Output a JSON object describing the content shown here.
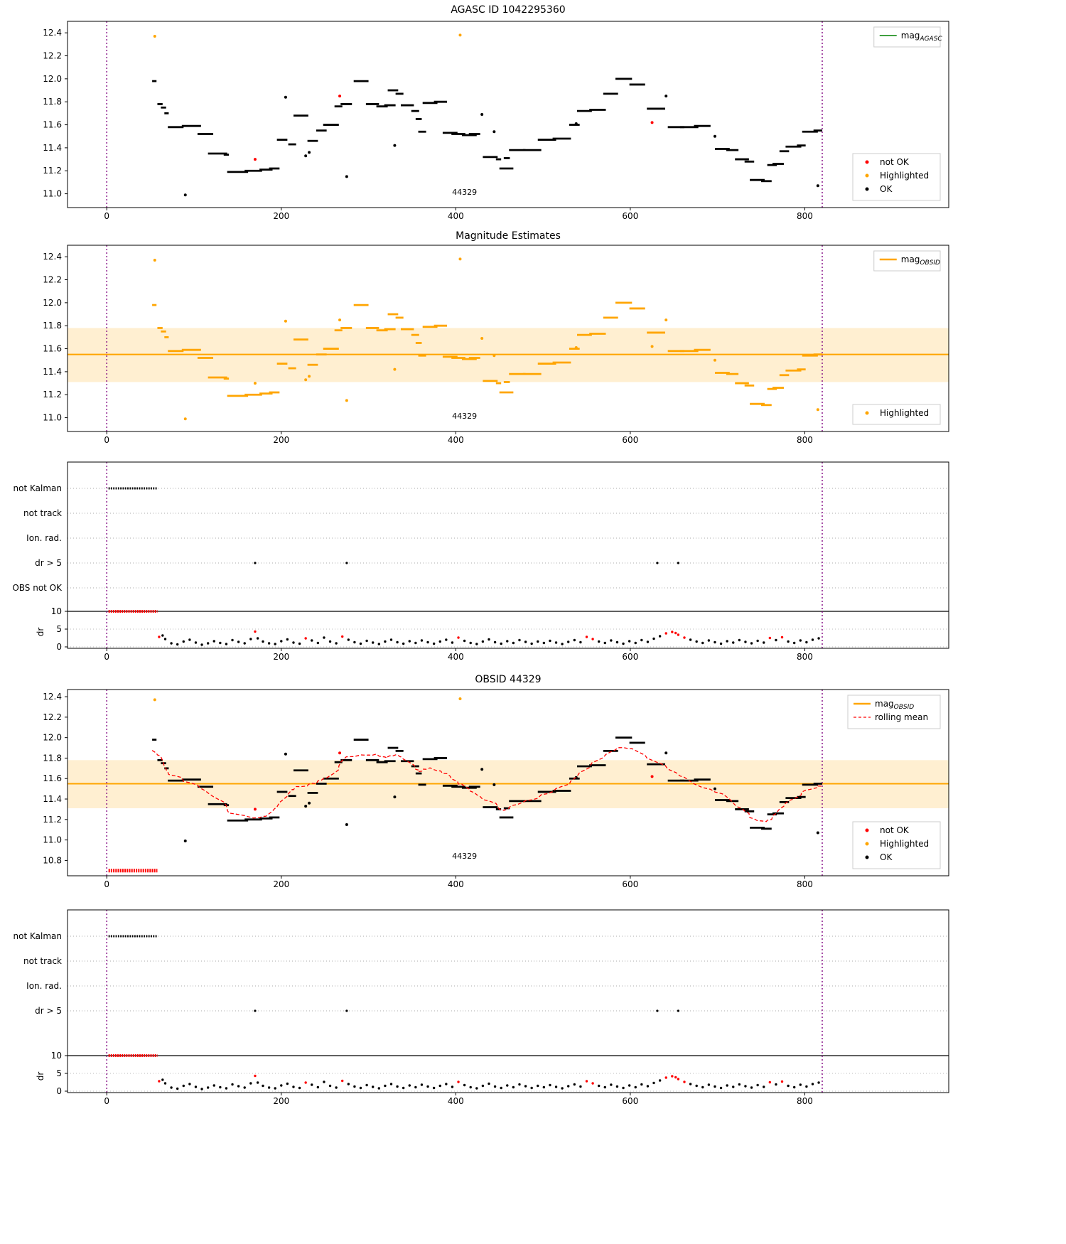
{
  "chart_data": {
    "shared": {
      "xlim": [
        -45,
        965
      ],
      "xticks": [
        0,
        200,
        400,
        600,
        800
      ],
      "vlines": [
        0,
        820
      ],
      "vline_color": "#800080",
      "mag_mean": 11.55,
      "mag_band": [
        11.31,
        11.78
      ],
      "red_cluster": {
        "x0": 2,
        "x1": 58,
        "mag": 10.7
      },
      "mag_segments": [
        [
          52,
          57,
          11.98
        ],
        [
          58,
          64,
          11.78
        ],
        [
          62,
          68,
          11.75
        ],
        [
          66,
          71,
          11.7
        ],
        [
          70,
          88,
          11.58
        ],
        [
          86,
          108,
          11.59
        ],
        [
          104,
          122,
          11.52
        ],
        [
          116,
          138,
          11.35
        ],
        [
          134,
          140,
          11.34
        ],
        [
          138,
          162,
          11.19
        ],
        [
          158,
          178,
          11.2
        ],
        [
          175,
          190,
          11.21
        ],
        [
          186,
          198,
          11.22
        ],
        [
          195,
          207,
          11.47
        ],
        [
          208,
          217,
          11.43
        ],
        [
          214,
          231,
          11.68
        ],
        [
          230,
          242,
          11.46
        ],
        [
          240,
          252,
          11.55
        ],
        [
          248,
          266,
          11.6
        ],
        [
          261,
          270,
          11.76
        ],
        [
          268,
          281,
          11.78
        ],
        [
          283,
          300,
          11.98
        ],
        [
          297,
          312,
          11.78
        ],
        [
          309,
          322,
          11.76
        ],
        [
          318,
          331,
          11.77
        ],
        [
          322,
          334,
          11.9
        ],
        [
          331,
          340,
          11.87
        ],
        [
          337,
          352,
          11.77
        ],
        [
          349,
          358,
          11.72
        ],
        [
          354,
          361,
          11.65
        ],
        [
          357,
          366,
          11.54
        ],
        [
          362,
          379,
          11.79
        ],
        [
          375,
          390,
          11.8
        ],
        [
          385,
          402,
          11.53
        ],
        [
          395,
          411,
          11.52
        ],
        [
          407,
          424,
          11.51
        ],
        [
          415,
          428,
          11.52
        ],
        [
          431,
          448,
          11.32
        ],
        [
          446,
          452,
          11.3
        ],
        [
          450,
          466,
          11.22
        ],
        [
          455,
          462,
          11.31
        ],
        [
          461,
          480,
          11.38
        ],
        [
          477,
          498,
          11.38
        ],
        [
          494,
          515,
          11.47
        ],
        [
          511,
          532,
          11.48
        ],
        [
          530,
          542,
          11.6
        ],
        [
          539,
          556,
          11.72
        ],
        [
          553,
          572,
          11.73
        ],
        [
          569,
          586,
          11.87
        ],
        [
          583,
          602,
          12.0
        ],
        [
          599,
          617,
          11.95
        ],
        [
          619,
          640,
          11.74
        ],
        [
          643,
          662,
          11.58
        ],
        [
          657,
          678,
          11.58
        ],
        [
          673,
          692,
          11.59
        ],
        [
          697,
          714,
          11.39
        ],
        [
          710,
          724,
          11.38
        ],
        [
          720,
          736,
          11.3
        ],
        [
          731,
          742,
          11.28
        ],
        [
          737,
          754,
          11.12
        ],
        [
          750,
          762,
          11.11
        ],
        [
          757,
          768,
          11.25
        ],
        [
          763,
          776,
          11.26
        ],
        [
          771,
          782,
          11.37
        ],
        [
          778,
          796,
          11.41
        ],
        [
          791,
          801,
          11.42
        ],
        [
          797,
          815,
          11.54
        ],
        [
          810,
          820,
          11.55
        ]
      ],
      "single_points": [
        [
          90,
          10.99
        ],
        [
          205,
          11.84
        ],
        [
          228,
          11.33
        ],
        [
          232,
          11.36
        ],
        [
          275,
          11.15
        ],
        [
          330,
          11.42
        ],
        [
          430,
          11.69
        ],
        [
          444,
          11.54
        ],
        [
          538,
          11.61
        ],
        [
          641,
          11.85
        ],
        [
          697,
          11.5
        ],
        [
          815,
          11.07
        ]
      ],
      "red_points": [
        [
          170,
          11.3
        ],
        [
          267,
          11.85
        ],
        [
          625,
          11.62
        ]
      ],
      "orange_points": [
        [
          55,
          12.37
        ],
        [
          405,
          12.38
        ]
      ],
      "flags": {
        "not_kalman": {
          "x0": 2,
          "x1": 58
        },
        "dr10": {
          "x0": 2,
          "x1": 58
        },
        "dr_gt5_points": [
          170,
          275,
          631,
          655
        ],
        "dr_points": [
          [
            60,
            2.8,
            1
          ],
          [
            64,
            3.2,
            0
          ],
          [
            67,
            2.2,
            0
          ],
          [
            74,
            1.0,
            0
          ],
          [
            81,
            0.7,
            0
          ],
          [
            88,
            1.5,
            0
          ],
          [
            95,
            2.0,
            0
          ],
          [
            102,
            1.2,
            0
          ],
          [
            109,
            0.6,
            0
          ],
          [
            116,
            1.0,
            0
          ],
          [
            123,
            1.6,
            0
          ],
          [
            130,
            1.1,
            0
          ],
          [
            137,
            0.8,
            0
          ],
          [
            144,
            1.9,
            0
          ],
          [
            151,
            1.4,
            0
          ],
          [
            158,
            1.0,
            0
          ],
          [
            165,
            2.2,
            0
          ],
          [
            170,
            4.3,
            1
          ],
          [
            173,
            2.4,
            0
          ],
          [
            179,
            1.5,
            0
          ],
          [
            186,
            1.0,
            0
          ],
          [
            193,
            0.8,
            0
          ],
          [
            200,
            1.6,
            0
          ],
          [
            207,
            2.1,
            0
          ],
          [
            214,
            1.2,
            0
          ],
          [
            221,
            0.9,
            0
          ],
          [
            228,
            2.4,
            1
          ],
          [
            235,
            1.8,
            0
          ],
          [
            242,
            1.1,
            0
          ],
          [
            249,
            2.6,
            0
          ],
          [
            256,
            1.5,
            0
          ],
          [
            263,
            1.0,
            0
          ],
          [
            270,
            2.9,
            1
          ],
          [
            277,
            2.0,
            0
          ],
          [
            284,
            1.3,
            0
          ],
          [
            291,
            0.9,
            0
          ],
          [
            298,
            1.7,
            0
          ],
          [
            305,
            1.2,
            0
          ],
          [
            312,
            0.8,
            0
          ],
          [
            319,
            1.5,
            0
          ],
          [
            326,
            2.0,
            0
          ],
          [
            333,
            1.3,
            0
          ],
          [
            340,
            0.9,
            0
          ],
          [
            347,
            1.6,
            0
          ],
          [
            354,
            1.1,
            0
          ],
          [
            361,
            1.8,
            0
          ],
          [
            368,
            1.3,
            0
          ],
          [
            375,
            0.9,
            0
          ],
          [
            382,
            1.5,
            0
          ],
          [
            389,
            2.0,
            0
          ],
          [
            396,
            1.2,
            0
          ],
          [
            403,
            2.6,
            1
          ],
          [
            410,
            1.7,
            0
          ],
          [
            417,
            1.1,
            0
          ],
          [
            424,
            0.8,
            0
          ],
          [
            431,
            1.5,
            0
          ],
          [
            438,
            2.1,
            0
          ],
          [
            445,
            1.3,
            0
          ],
          [
            452,
            0.9,
            0
          ],
          [
            459,
            1.6,
            0
          ],
          [
            466,
            1.1,
            0
          ],
          [
            473,
            1.9,
            0
          ],
          [
            480,
            1.4,
            0
          ],
          [
            487,
            0.9,
            0
          ],
          [
            494,
            1.5,
            0
          ],
          [
            501,
            1.1,
            0
          ],
          [
            508,
            1.7,
            0
          ],
          [
            515,
            1.2,
            0
          ],
          [
            522,
            0.8,
            0
          ],
          [
            529,
            1.4,
            0
          ],
          [
            536,
            1.9,
            0
          ],
          [
            543,
            1.3,
            0
          ],
          [
            550,
            2.8,
            1
          ],
          [
            557,
            2.2,
            1
          ],
          [
            564,
            1.5,
            0
          ],
          [
            571,
            1.1,
            0
          ],
          [
            578,
            1.8,
            0
          ],
          [
            585,
            1.3,
            0
          ],
          [
            592,
            0.9,
            0
          ],
          [
            599,
            1.6,
            0
          ],
          [
            606,
            1.1,
            0
          ],
          [
            613,
            1.9,
            0
          ],
          [
            620,
            1.4,
            0
          ],
          [
            627,
            2.3,
            0
          ],
          [
            634,
            3.0,
            0
          ],
          [
            641,
            3.8,
            1
          ],
          [
            648,
            4.2,
            1
          ],
          [
            652,
            3.9,
            1
          ],
          [
            655,
            3.4,
            1
          ],
          [
            662,
            2.6,
            1
          ],
          [
            669,
            2.0,
            0
          ],
          [
            676,
            1.5,
            0
          ],
          [
            683,
            1.1,
            0
          ],
          [
            690,
            1.8,
            0
          ],
          [
            697,
            1.3,
            0
          ],
          [
            704,
            0.9,
            0
          ],
          [
            711,
            1.6,
            0
          ],
          [
            718,
            1.2,
            0
          ],
          [
            725,
            1.9,
            0
          ],
          [
            732,
            1.4,
            0
          ],
          [
            739,
            1.0,
            0
          ],
          [
            746,
            1.7,
            0
          ],
          [
            753,
            1.2,
            0
          ],
          [
            760,
            2.5,
            1
          ],
          [
            767,
            1.9,
            0
          ],
          [
            774,
            2.7,
            1
          ],
          [
            781,
            1.5,
            0
          ],
          [
            788,
            1.1,
            0
          ],
          [
            795,
            1.8,
            0
          ],
          [
            802,
            1.3,
            0
          ],
          [
            809,
            2.0,
            0
          ],
          [
            816,
            2.4,
            0
          ]
        ]
      }
    },
    "charts": [
      {
        "id": "agasc",
        "type": "mag",
        "title": "AGASC ID 1042295360",
        "ylim": [
          10.88,
          12.5
        ],
        "yticks": [
          11.0,
          11.2,
          11.4,
          11.6,
          11.8,
          12.0,
          12.2,
          12.4
        ],
        "point_color": "#000000",
        "show_band": false,
        "show_mean": false,
        "rolling": false,
        "red_cluster": false,
        "show_red": true,
        "obsid_text": "44329",
        "legend_top": [
          {
            "marker": "line",
            "color": "#008000",
            "label": "mag",
            "sub": "AGASC"
          }
        ],
        "legend_bottom": [
          {
            "marker": "dot",
            "color": "#ff0000",
            "label": "not OK"
          },
          {
            "marker": "dot",
            "color": "#ffa500",
            "label": "Highlighted"
          },
          {
            "marker": "dot",
            "color": "#000000",
            "label": "OK"
          }
        ]
      },
      {
        "id": "magest",
        "type": "mag",
        "title": "Magnitude Estimates",
        "ylim": [
          10.88,
          12.5
        ],
        "yticks": [
          11.0,
          11.2,
          11.4,
          11.6,
          11.8,
          12.0,
          12.2,
          12.4
        ],
        "point_color": "#ffa500",
        "show_band": true,
        "show_mean": true,
        "rolling": false,
        "red_cluster": false,
        "show_red": false,
        "obsid_text": "44329",
        "legend_top": [
          {
            "marker": "line",
            "color": "#ffa500",
            "label": "mag",
            "sub": "OBSID",
            "thick": true
          }
        ],
        "legend_bottom": [
          {
            "marker": "dot",
            "color": "#ffa500",
            "label": "Highlighted"
          }
        ]
      },
      {
        "id": "flags1",
        "type": "flags",
        "rows": [
          "not Kalman",
          "not track",
          "Ion. rad.",
          "dr > 5",
          "OBS not OK"
        ],
        "dr_label": "dr",
        "dr_ticks": [
          10,
          5,
          0
        ]
      },
      {
        "id": "obsid",
        "type": "mag",
        "title": "OBSID 44329",
        "ylim": [
          10.65,
          12.47
        ],
        "yticks": [
          10.8,
          11.0,
          11.2,
          11.4,
          11.6,
          11.8,
          12.0,
          12.2,
          12.4
        ],
        "point_color": "#000000",
        "show_band": true,
        "show_mean": true,
        "rolling": true,
        "red_cluster": true,
        "show_red": true,
        "obsid_text": "44329",
        "legend_top": [
          {
            "marker": "line",
            "color": "#ffa500",
            "label": "mag",
            "sub": "OBSID",
            "thick": true
          },
          {
            "marker": "dashed",
            "color": "#ff0000",
            "label": "rolling mean"
          }
        ],
        "legend_bottom": [
          {
            "marker": "dot",
            "color": "#ff0000",
            "label": "not OK"
          },
          {
            "marker": "dot",
            "color": "#ffa500",
            "label": "Highlighted"
          },
          {
            "marker": "dot",
            "color": "#000000",
            "label": "OK"
          }
        ]
      },
      {
        "id": "flags2",
        "type": "flags",
        "rows": [
          "not Kalman",
          "not track",
          "Ion. rad.",
          "dr > 5"
        ],
        "dr_label": "dr",
        "dr_ticks": [
          10,
          5,
          0
        ]
      }
    ]
  }
}
